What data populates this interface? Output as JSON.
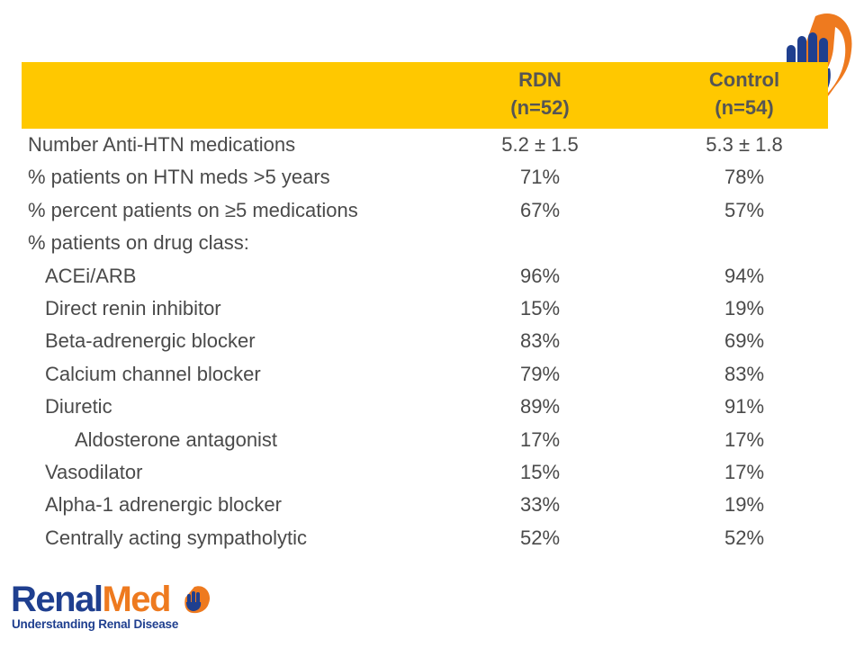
{
  "table": {
    "columns": [
      {
        "line1": "RDN",
        "line2": "(n=52)"
      },
      {
        "line1": "Control",
        "line2": "(n=54)"
      }
    ],
    "rows": [
      {
        "label": "Number Anti-HTN medications",
        "rdn": "5.2 ± 1.5",
        "control": "5.3 ± 1.8",
        "indent": 0
      },
      {
        "label": "% patients on HTN meds >5 years",
        "rdn": "71%",
        "control": "78%",
        "indent": 0
      },
      {
        "label": "% percent patients on ≥5 medications",
        "rdn": "67%",
        "control": "57%",
        "indent": 0
      },
      {
        "label": "% patients on drug class:",
        "rdn": "",
        "control": "",
        "indent": 0
      },
      {
        "label": "ACEi/ARB",
        "rdn": "96%",
        "control": "94%",
        "indent": 1
      },
      {
        "label": "Direct renin inhibitor",
        "rdn": "15%",
        "control": "19%",
        "indent": 1
      },
      {
        "label": "Beta-adrenergic blocker",
        "rdn": "83%",
        "control": "69%",
        "indent": 1
      },
      {
        "label": "Calcium channel blocker",
        "rdn": "79%",
        "control": "83%",
        "indent": 1
      },
      {
        "label": "Diuretic",
        "rdn": "89%",
        "control": "91%",
        "indent": 1
      },
      {
        "label": "Aldosterone antagonist",
        "rdn": "17%",
        "control": "17%",
        "indent": 2
      },
      {
        "label": "Vasodilator",
        "rdn": "15%",
        "control": "17%",
        "indent": 1
      },
      {
        "label": "Alpha-1 adrenergic blocker",
        "rdn": "33%",
        "control": "19%",
        "indent": 1
      },
      {
        "label": "Centrally acting sympatholytic",
        "rdn": "52%",
        "control": "52%",
        "indent": 1
      }
    ]
  },
  "brand": {
    "name_part1": "Renal",
    "name_part2": "Med",
    "tagline": "Understanding Renal Disease"
  },
  "colors": {
    "header_bg": "#FFC800",
    "brand_blue": "#1f3f8f",
    "brand_orange": "#ee7a1f",
    "text": "#4a4a4a"
  },
  "icons": {
    "corner_logo": "hand-kidney-logo-icon",
    "brand_logo": "hand-kidney-logo-icon"
  }
}
